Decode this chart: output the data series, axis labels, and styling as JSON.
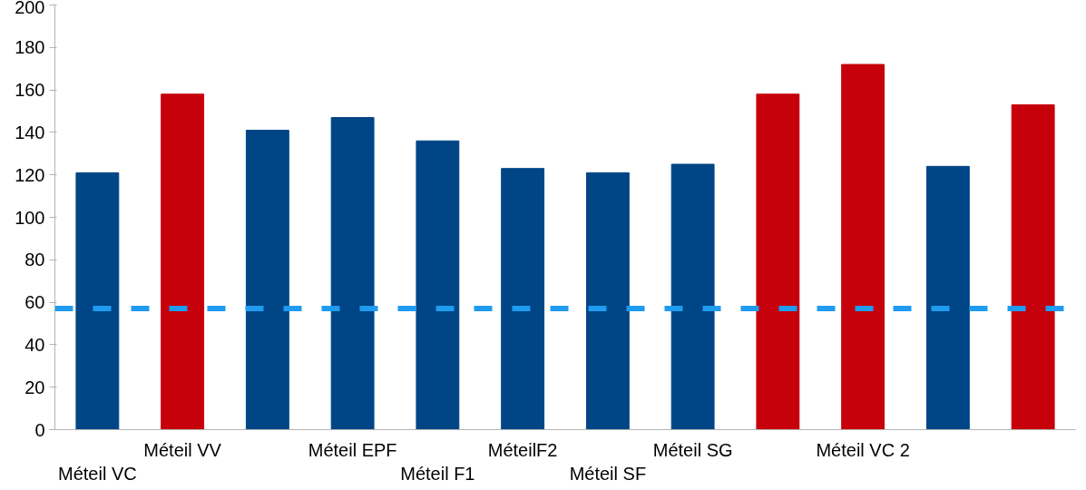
{
  "chart_data": {
    "type": "bar",
    "categories": [
      "Méteil VC",
      "Méteil VV",
      null,
      "Méteil EPF",
      "Méteil F1",
      "MéteilF2",
      "Méteil SF",
      "Méteil SG",
      null,
      "Méteil VC 2",
      null,
      null
    ],
    "values": [
      121,
      158,
      141,
      147,
      136,
      123,
      121,
      125,
      158,
      172,
      124,
      153
    ],
    "colors": [
      "#004586",
      "#c5000b",
      "#004586",
      "#004586",
      "#004586",
      "#004586",
      "#004586",
      "#004586",
      "#c5000b",
      "#c5000b",
      "#004586",
      "#c5000b"
    ],
    "ylim": [
      0,
      200
    ],
    "yticks": [
      0,
      20,
      40,
      60,
      80,
      100,
      120,
      140,
      160,
      180,
      200
    ],
    "ref_lines": [
      {
        "axis": "y",
        "value": 57,
        "color": "#1f9bf0",
        "line_style": "dashed"
      }
    ],
    "grid": false
  }
}
